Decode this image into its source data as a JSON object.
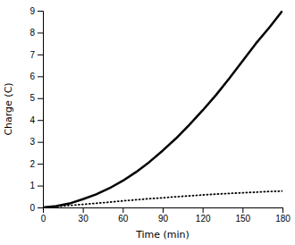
{
  "chart_data": {
    "type": "line",
    "xlabel": "Time (min)",
    "ylabel": "Charge (C)",
    "xlim": [
      0,
      180
    ],
    "ylim": [
      0,
      9
    ],
    "xticks": [
      0,
      30,
      60,
      90,
      120,
      150,
      180
    ],
    "yticks": [
      0,
      1,
      2,
      3,
      4,
      5,
      6,
      7,
      8,
      9
    ],
    "x": [
      0,
      10,
      20,
      30,
      40,
      50,
      60,
      70,
      80,
      90,
      100,
      110,
      120,
      130,
      140,
      150,
      160,
      170,
      180
    ],
    "series": [
      {
        "color": "#000000",
        "line_style": "solid",
        "values": [
          0,
          0.06,
          0.18,
          0.38,
          0.6,
          0.88,
          1.22,
          1.62,
          2.08,
          2.6,
          3.16,
          3.78,
          4.44,
          5.14,
          5.9,
          6.7,
          7.5,
          8.22,
          9.0
        ]
      },
      {
        "color": "#000000",
        "line_style": "dotted",
        "values": [
          0,
          0.04,
          0.09,
          0.14,
          0.19,
          0.24,
          0.3,
          0.35,
          0.4,
          0.44,
          0.49,
          0.53,
          0.57,
          0.61,
          0.64,
          0.67,
          0.7,
          0.73,
          0.75
        ]
      }
    ]
  }
}
